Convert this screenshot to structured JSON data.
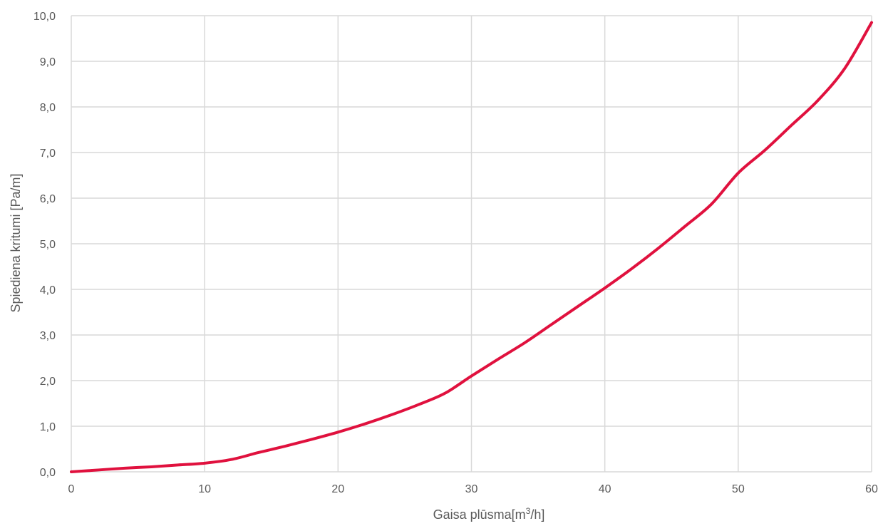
{
  "chart_data": {
    "type": "line",
    "title": "",
    "xlabel_parts": {
      "pre": "Gaisa plūsma[m",
      "sup": "3",
      "post": "/h]"
    },
    "ylabel": "Spiediena kritumi [Pa/m]",
    "xlim": [
      0,
      60
    ],
    "ylim": [
      0,
      10
    ],
    "x_ticks": [
      0,
      10,
      20,
      30,
      40,
      50,
      60
    ],
    "x_tick_labels": [
      "0",
      "10",
      "20",
      "30",
      "40",
      "50",
      "60"
    ],
    "y_ticks": [
      0,
      1,
      2,
      3,
      4,
      5,
      6,
      7,
      8,
      9,
      10
    ],
    "y_tick_labels": [
      "0,0",
      "1,0",
      "2,0",
      "3,0",
      "4,0",
      "5,0",
      "6,0",
      "7,0",
      "8,0",
      "9,0",
      "10,0"
    ],
    "grid": true,
    "legend": "none",
    "series": [
      {
        "color": "#e0113e",
        "x": [
          0,
          2,
          4,
          6,
          8,
          10,
          12,
          14,
          16,
          18,
          20,
          22,
          24,
          26,
          28,
          30,
          32,
          34,
          36,
          38,
          40,
          42,
          44,
          46,
          48,
          50,
          52,
          54,
          56,
          58,
          60
        ],
        "y": [
          0,
          0.04,
          0.08,
          0.11,
          0.15,
          0.19,
          0.27,
          0.42,
          0.56,
          0.71,
          0.87,
          1.05,
          1.25,
          1.47,
          1.72,
          2.1,
          2.47,
          2.83,
          3.23,
          3.63,
          4.03,
          4.45,
          4.9,
          5.38,
          5.87,
          6.55,
          7.05,
          7.6,
          8.15,
          8.85,
          9.85
        ]
      }
    ]
  }
}
